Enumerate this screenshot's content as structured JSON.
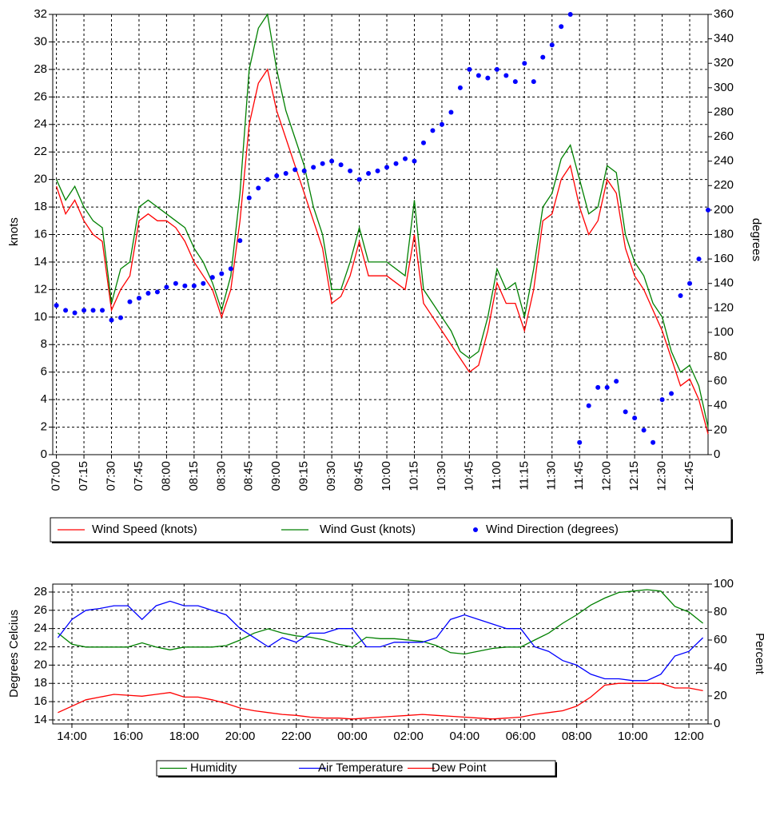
{
  "chart_data": [
    {
      "type": "line",
      "y_label": "knots",
      "y2_label": "degrees",
      "grid": true,
      "x": [
        "07:00",
        "07:05",
        "07:10",
        "07:15",
        "07:20",
        "07:25",
        "07:30",
        "07:35",
        "07:40",
        "07:45",
        "07:50",
        "07:55",
        "08:00",
        "08:05",
        "08:10",
        "08:15",
        "08:20",
        "08:25",
        "08:30",
        "08:35",
        "08:40",
        "08:45",
        "08:50",
        "08:55",
        "09:00",
        "09:05",
        "09:10",
        "09:15",
        "09:20",
        "09:25",
        "09:30",
        "09:35",
        "09:40",
        "09:45",
        "09:50",
        "09:55",
        "10:00",
        "10:05",
        "10:10",
        "10:15",
        "10:20",
        "10:25",
        "10:30",
        "10:35",
        "10:40",
        "10:45",
        "10:50",
        "10:55",
        "11:00",
        "11:05",
        "11:10",
        "11:15",
        "11:20",
        "11:25",
        "11:30",
        "11:35",
        "11:40",
        "11:45",
        "11:50",
        "11:55",
        "12:00",
        "12:05",
        "12:10",
        "12:15",
        "12:20",
        "12:25",
        "12:30",
        "12:35",
        "12:40",
        "12:45",
        "12:50",
        "12:55"
      ],
      "xlim": [
        "06:58",
        "12:55"
      ],
      "xticks": [
        "07:00",
        "07:15",
        "07:30",
        "07:45",
        "08:00",
        "08:15",
        "08:30",
        "08:45",
        "09:00",
        "09:15",
        "09:30",
        "09:45",
        "10:00",
        "10:15",
        "10:30",
        "10:45",
        "11:00",
        "11:15",
        "11:30",
        "11:45",
        "12:00",
        "12:15",
        "12:30",
        "12:45"
      ],
      "ylim": [
        0,
        32
      ],
      "yticks": [
        0,
        2,
        4,
        6,
        8,
        10,
        12,
        14,
        16,
        18,
        20,
        22,
        24,
        26,
        28,
        30,
        32
      ],
      "y2lim": [
        0,
        360
      ],
      "y2ticks": [
        0,
        20,
        40,
        60,
        80,
        100,
        120,
        140,
        160,
        180,
        200,
        220,
        240,
        260,
        280,
        300,
        320,
        340,
        360
      ],
      "series": [
        {
          "name": "Wind Speed (knots)",
          "color": "#ff0000",
          "values": [
            19.5,
            17.5,
            18.5,
            17,
            16,
            15.5,
            10.5,
            12,
            13,
            17,
            17.5,
            17,
            17,
            16.5,
            15.5,
            14,
            13,
            12,
            10,
            12,
            17,
            24,
            27,
            28,
            25,
            23,
            21,
            19,
            17,
            15,
            11,
            11.5,
            13,
            15.5,
            13,
            13,
            13,
            12.5,
            12,
            16,
            11,
            10,
            9,
            8,
            7,
            6,
            6.5,
            9,
            12.5,
            11,
            11,
            9,
            12,
            17,
            17.5,
            20,
            21,
            18,
            16,
            17,
            20,
            19,
            15,
            13,
            12,
            10.5,
            9,
            7,
            5,
            5.5,
            4,
            1.5
          ]
        },
        {
          "name": "Wind Gust (knots)",
          "color": "#008000",
          "values": [
            20,
            18.5,
            19.5,
            18,
            17,
            16.5,
            11,
            13.5,
            14,
            18,
            18.5,
            18,
            17.5,
            17,
            16.5,
            15,
            14,
            12.5,
            10.5,
            13,
            19,
            28,
            31,
            32,
            28,
            25,
            23,
            21,
            18,
            16,
            12,
            12,
            14,
            16.5,
            14,
            14,
            14,
            13.5,
            13,
            18.5,
            12,
            11,
            10,
            9,
            7.5,
            7,
            7.5,
            10,
            13.5,
            12,
            12.5,
            10,
            13.5,
            18,
            19,
            21.5,
            22.5,
            20,
            17.5,
            18,
            21,
            20.5,
            16,
            14,
            13,
            11,
            10,
            7.5,
            6,
            6.5,
            5,
            2
          ]
        },
        {
          "name": "Wind Direction (degrees)",
          "color": "#0000ff",
          "type": "scatter",
          "axis": "y2",
          "values": [
            122,
            118,
            116,
            118,
            118,
            118,
            110,
            112,
            125,
            128,
            132,
            133,
            137,
            140,
            138,
            138,
            140,
            145,
            148,
            152,
            175,
            210,
            218,
            225,
            228,
            230,
            233,
            232,
            235,
            238,
            240,
            237,
            232,
            225,
            230,
            232,
            235,
            238,
            242,
            240,
            255,
            265,
            270,
            280,
            300,
            315,
            310,
            308,
            315,
            310,
            305,
            320,
            305,
            325,
            335,
            350,
            360,
            10,
            40,
            55,
            55,
            60,
            35,
            30,
            20,
            10,
            45,
            50,
            130,
            140,
            160,
            200
          ]
        }
      ]
    },
    {
      "type": "line",
      "y_label": "Degrees Celcius",
      "y2_label": "Percent",
      "grid": true,
      "x": [
        "13:30",
        "14:00",
        "14:30",
        "15:00",
        "15:30",
        "16:00",
        "16:30",
        "17:00",
        "17:30",
        "18:00",
        "18:30",
        "19:00",
        "19:30",
        "20:00",
        "20:30",
        "21:00",
        "21:30",
        "22:00",
        "22:30",
        "23:00",
        "23:30",
        "00:00",
        "00:30",
        "01:00",
        "01:30",
        "02:00",
        "02:30",
        "03:00",
        "03:30",
        "04:00",
        "04:30",
        "05:00",
        "05:30",
        "06:00",
        "06:30",
        "07:00",
        "07:30",
        "08:00",
        "08:30",
        "09:00",
        "09:30",
        "10:00",
        "10:30",
        "11:00",
        "11:30",
        "12:00",
        "12:30"
      ],
      "xlim": [
        "13:19",
        "12:41"
      ],
      "xticks": [
        "14:00",
        "16:00",
        "18:00",
        "20:00",
        "22:00",
        "00:00",
        "02:00",
        "04:00",
        "06:00",
        "08:00",
        "10:00",
        "12:00"
      ],
      "ylim": [
        13.56,
        28.87
      ],
      "yticks": [
        14,
        16,
        18,
        20,
        22,
        24,
        26,
        28
      ],
      "y2lim": [
        0,
        100
      ],
      "y2ticks": [
        0,
        20,
        40,
        60,
        80,
        100
      ],
      "series": [
        {
          "name": "Humidity",
          "color": "#008000",
          "axis": "y2",
          "values": [
            65,
            57,
            55,
            55,
            55,
            55,
            58,
            55,
            53,
            55,
            55,
            55,
            56,
            60,
            65,
            68,
            65,
            63,
            62,
            60,
            57,
            55,
            62,
            61,
            61,
            60,
            59,
            56,
            51,
            50,
            52,
            54,
            55,
            55,
            60,
            65,
            72,
            78,
            85,
            90,
            94,
            95,
            96,
            95,
            84,
            80,
            72
          ]
        },
        {
          "name": "Air Temperature",
          "color": "#0000ff",
          "values": [
            23,
            25,
            26,
            26.2,
            26.5,
            26.5,
            25,
            26.5,
            27,
            26.5,
            26.5,
            26,
            25.5,
            24,
            23,
            22,
            23,
            22.5,
            23.5,
            23.5,
            24,
            24,
            22,
            22,
            22.5,
            22.5,
            22.5,
            23,
            25,
            25.5,
            25,
            24.5,
            24,
            24,
            22,
            21.5,
            20.5,
            20,
            19,
            18.5,
            18.5,
            18.3,
            18.3,
            19,
            21,
            21.5,
            23
          ]
        },
        {
          "name": "Dew Point",
          "color": "#ff0000",
          "values": [
            14.8,
            15.5,
            16.2,
            16.5,
            16.8,
            16.7,
            16.6,
            16.8,
            17,
            16.5,
            16.5,
            16.2,
            15.8,
            15.3,
            15,
            14.8,
            14.6,
            14.5,
            14.3,
            14.2,
            14.2,
            14.1,
            14.2,
            14.3,
            14.4,
            14.5,
            14.6,
            14.5,
            14.4,
            14.3,
            14.2,
            14.1,
            14.2,
            14.3,
            14.6,
            14.8,
            15,
            15.5,
            16.5,
            17.8,
            18,
            18,
            18,
            18,
            17.5,
            17.5,
            17.2
          ]
        }
      ]
    }
  ]
}
